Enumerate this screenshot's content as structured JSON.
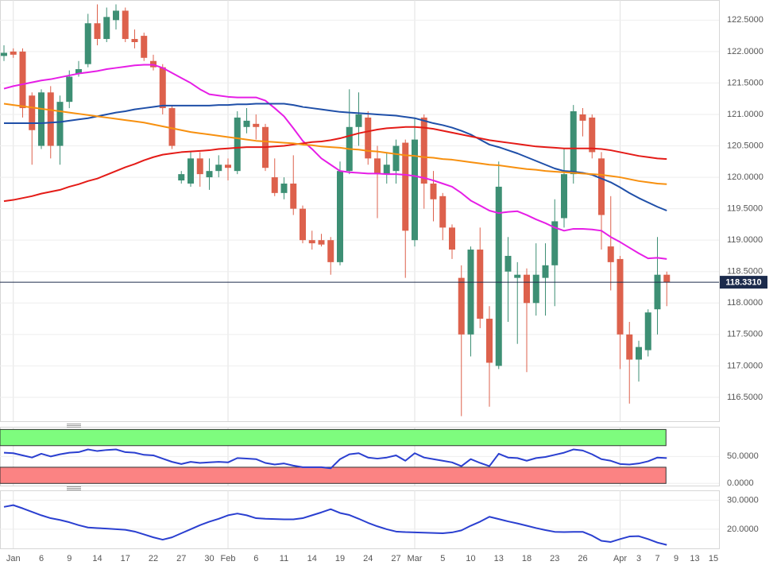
{
  "chart_data": [
    {
      "type": "candlestick",
      "categories": [
        null,
        "Jan",
        null,
        null,
        "6",
        null,
        null,
        "9",
        null,
        null,
        "14",
        null,
        null,
        "17",
        null,
        null,
        "22",
        null,
        null,
        "27",
        null,
        null,
        "30",
        null,
        "Feb",
        null,
        null,
        "6",
        null,
        null,
        "11",
        null,
        null,
        "14",
        null,
        null,
        "19",
        null,
        null,
        "24",
        null,
        null,
        "27",
        null,
        "Mar",
        null,
        null,
        "5",
        null,
        null,
        "10",
        null,
        null,
        "13",
        null,
        null,
        "18",
        null,
        null,
        "23",
        null,
        null,
        "26",
        null,
        null,
        null,
        "Apr",
        null,
        "3",
        null,
        "7",
        null,
        "9",
        null,
        "13",
        null,
        "15"
      ],
      "open": [
        121.93,
        122.0,
        122.0,
        121.3,
        120.5,
        121.35,
        120.5,
        121.2,
        121.65,
        121.8,
        122.45,
        122.2,
        122.5,
        122.65,
        122.2,
        122.25,
        121.85,
        121.75,
        121.1,
        119.95,
        119.9,
        120.3,
        120.0,
        120.1,
        120.2,
        120.1,
        120.8,
        120.85,
        120.8,
        120.0,
        119.75,
        119.9,
        119.5,
        119.0,
        119.0,
        119.0,
        118.65,
        120.1,
        120.8,
        120.95,
        120.3,
        120.05,
        120.1,
        120.55,
        119.0,
        120.95,
        119.9,
        119.7,
        119.2,
        118.4,
        117.5,
        118.85,
        117.75,
        117.0,
        118.5,
        118.4,
        118.45,
        118.0,
        118.4,
        118.6,
        119.35,
        120.05,
        121.0,
        120.95,
        120.3,
        118.9,
        118.7,
        117.5,
        117.1,
        117.25,
        117.9,
        118.45,
        null,
        null,
        null,
        null,
        null
      ],
      "high": [
        122.1,
        122.05,
        122.05,
        121.35,
        121.4,
        121.45,
        121.3,
        121.7,
        121.85,
        122.6,
        122.75,
        122.7,
        122.75,
        122.7,
        122.35,
        122.3,
        121.95,
        121.8,
        121.15,
        120.1,
        120.4,
        120.4,
        120.3,
        120.35,
        120.3,
        121.05,
        121.1,
        121.0,
        120.85,
        120.3,
        120.0,
        120.35,
        119.55,
        119.15,
        119.1,
        119.05,
        120.25,
        121.4,
        121.35,
        121.05,
        120.5,
        120.4,
        120.6,
        120.6,
        120.95,
        121.0,
        120.1,
        119.75,
        119.25,
        118.6,
        118.9,
        119.2,
        117.95,
        120.25,
        119.05,
        118.65,
        118.55,
        118.95,
        118.95,
        119.65,
        120.45,
        121.15,
        121.1,
        121.0,
        120.4,
        119.7,
        118.75,
        117.7,
        117.4,
        117.9,
        119.05,
        118.5,
        null,
        null,
        null,
        null,
        null
      ],
      "low": [
        121.85,
        121.9,
        120.95,
        120.2,
        120.45,
        120.3,
        120.2,
        121.1,
        121.6,
        121.75,
        122.1,
        122.15,
        122.35,
        122.15,
        122.05,
        121.85,
        121.7,
        121.0,
        120.45,
        119.9,
        119.85,
        119.85,
        119.8,
        120.0,
        119.95,
        120.05,
        120.7,
        120.6,
        120.1,
        119.7,
        119.65,
        119.4,
        118.95,
        118.85,
        118.9,
        118.45,
        118.6,
        120.05,
        120.5,
        120.2,
        119.35,
        119.9,
        119.9,
        118.4,
        118.9,
        119.5,
        119.3,
        119.0,
        118.7,
        116.2,
        117.15,
        117.6,
        116.35,
        116.95,
        117.7,
        117.35,
        116.9,
        117.8,
        117.8,
        117.95,
        119.2,
        119.9,
        120.65,
        120.3,
        118.85,
        118.2,
        116.95,
        116.4,
        116.75,
        117.15,
        117.5,
        117.95,
        null,
        null,
        null,
        null,
        null
      ],
      "close": [
        121.98,
        121.95,
        121.1,
        120.75,
        121.35,
        120.5,
        121.2,
        121.6,
        121.72,
        122.45,
        122.2,
        122.55,
        122.65,
        122.2,
        122.15,
        121.9,
        121.75,
        121.1,
        120.5,
        120.05,
        120.3,
        120.05,
        120.1,
        120.2,
        120.15,
        120.95,
        120.9,
        120.8,
        120.15,
        119.75,
        119.9,
        119.5,
        119.0,
        118.95,
        118.93,
        118.65,
        120.1,
        120.8,
        121.0,
        120.3,
        120.05,
        120.2,
        120.5,
        119.15,
        120.6,
        119.9,
        119.65,
        119.2,
        118.85,
        117.5,
        118.85,
        117.75,
        117.05,
        119.85,
        118.75,
        118.45,
        118.0,
        118.45,
        118.6,
        119.3,
        120.05,
        121.05,
        120.9,
        120.4,
        119.4,
        118.65,
        117.5,
        117.1,
        117.3,
        117.85,
        118.45,
        118.331,
        null,
        null,
        null,
        null,
        null
      ],
      "up_color": "#3d8f74",
      "down_color": "#dd614c",
      "lines": [
        {
          "color": "#e61ee6",
          "values": [
            121.41,
            121.45,
            121.48,
            121.51,
            121.54,
            121.56,
            121.59,
            121.62,
            121.65,
            121.67,
            121.69,
            121.72,
            121.74,
            121.76,
            121.78,
            121.79,
            121.79,
            121.74,
            121.66,
            121.58,
            121.5,
            121.4,
            121.32,
            121.3,
            121.28,
            121.27,
            121.27,
            121.27,
            121.22,
            121.1,
            120.97,
            120.78,
            120.58,
            120.45,
            120.3,
            120.2,
            120.1,
            120.08,
            120.07,
            120.06,
            120.06,
            120.05,
            120.05,
            120.04,
            120.02,
            119.99,
            119.95,
            119.9,
            119.85,
            119.75,
            119.63,
            119.55,
            119.47,
            119.43,
            119.45,
            119.46,
            119.4,
            119.33,
            119.27,
            119.2,
            119.15,
            119.18,
            119.18,
            119.17,
            119.15,
            119.05,
            118.97,
            118.88,
            118.79,
            118.71,
            118.72,
            118.7,
            null,
            null,
            null,
            null,
            null
          ]
        },
        {
          "color": "#1f4fa8",
          "values": [
            120.86,
            120.86,
            120.86,
            120.86,
            120.86,
            120.87,
            120.88,
            120.9,
            120.92,
            120.94,
            120.97,
            121.0,
            121.03,
            121.05,
            121.08,
            121.1,
            121.12,
            121.14,
            121.14,
            121.14,
            121.14,
            121.14,
            121.14,
            121.15,
            121.15,
            121.16,
            121.16,
            121.17,
            121.17,
            121.17,
            121.17,
            121.15,
            121.12,
            121.1,
            121.08,
            121.06,
            121.04,
            121.03,
            121.02,
            121.01,
            121.0,
            120.99,
            120.98,
            120.96,
            120.94,
            120.9,
            120.86,
            120.83,
            120.79,
            120.74,
            120.68,
            120.6,
            120.52,
            120.48,
            120.43,
            120.38,
            120.32,
            120.26,
            120.2,
            120.14,
            120.1,
            120.09,
            120.07,
            120.04,
            119.98,
            119.92,
            119.84,
            119.75,
            119.67,
            119.6,
            119.53,
            119.47,
            null,
            null,
            null,
            null,
            null
          ]
        },
        {
          "color": "#e41b17",
          "values": [
            119.62,
            119.64,
            119.67,
            119.7,
            119.74,
            119.77,
            119.8,
            119.85,
            119.89,
            119.94,
            119.98,
            120.04,
            120.1,
            120.16,
            120.21,
            120.27,
            120.32,
            120.36,
            120.38,
            120.4,
            120.41,
            120.42,
            120.43,
            120.45,
            120.46,
            120.47,
            120.48,
            120.48,
            120.48,
            120.49,
            120.5,
            120.52,
            120.54,
            120.56,
            120.57,
            120.59,
            120.62,
            120.66,
            120.7,
            120.73,
            120.76,
            120.78,
            120.79,
            120.8,
            120.8,
            120.79,
            120.77,
            120.74,
            120.71,
            120.68,
            120.65,
            120.62,
            120.59,
            120.57,
            120.55,
            120.53,
            120.51,
            120.49,
            120.48,
            120.47,
            120.46,
            120.46,
            120.46,
            120.46,
            120.45,
            120.43,
            120.4,
            120.37,
            120.34,
            120.32,
            120.3,
            120.29,
            null,
            null,
            null,
            null,
            null
          ]
        },
        {
          "color": "#f7900f",
          "values": [
            121.17,
            121.15,
            121.13,
            121.11,
            121.09,
            121.07,
            121.05,
            121.03,
            121.01,
            120.99,
            120.97,
            120.95,
            120.93,
            120.91,
            120.89,
            120.87,
            120.84,
            120.81,
            120.78,
            120.75,
            120.72,
            120.7,
            120.68,
            120.66,
            120.64,
            120.62,
            120.6,
            120.58,
            120.57,
            120.56,
            120.55,
            120.54,
            120.52,
            120.51,
            120.49,
            120.48,
            120.47,
            120.45,
            120.44,
            120.42,
            120.41,
            120.39,
            120.37,
            120.35,
            120.34,
            120.32,
            120.31,
            120.29,
            120.28,
            120.26,
            120.24,
            120.22,
            120.2,
            120.19,
            120.17,
            120.15,
            120.13,
            120.12,
            120.1,
            120.09,
            120.08,
            120.07,
            120.06,
            120.05,
            120.04,
            120.02,
            120.0,
            119.97,
            119.94,
            119.92,
            119.9,
            119.89,
            null,
            null,
            null,
            null,
            null
          ]
        }
      ],
      "ylim": [
        116.12,
        122.82
      ],
      "yticks": [
        {
          "value": 116.5,
          "label": "116.5000"
        },
        {
          "value": 117.0,
          "label": "117.0000"
        },
        {
          "value": 117.5,
          "label": "117.5000"
        },
        {
          "value": 118.0,
          "label": "118.0000"
        },
        {
          "value": 118.5,
          "label": "118.5000"
        },
        {
          "value": 119.0,
          "label": "119.0000"
        },
        {
          "value": 119.5,
          "label": "119.5000"
        },
        {
          "value": 120.0,
          "label": "120.0000"
        },
        {
          "value": 120.5,
          "label": "120.5000"
        },
        {
          "value": 121.0,
          "label": "121.0000"
        },
        {
          "value": 121.5,
          "label": "121.5000"
        },
        {
          "value": 122.0,
          "label": "122.0000"
        },
        {
          "value": 122.5,
          "label": "122.5000"
        }
      ],
      "last_price": {
        "value": 118.331,
        "label": "118.3310",
        "color": "#1c2b4c"
      },
      "grid": true
    },
    {
      "type": "line",
      "color": "#2a3fd0",
      "values": [
        57,
        56,
        52,
        48,
        55,
        50,
        54,
        57,
        58,
        63,
        60,
        62,
        63,
        58,
        57,
        53,
        52,
        46,
        40,
        36,
        40,
        38,
        39,
        40,
        39,
        47,
        46,
        45,
        38,
        35,
        37,
        33,
        30,
        30,
        30,
        28,
        45,
        54,
        56,
        48,
        46,
        48,
        52,
        42,
        56,
        48,
        45,
        42,
        39,
        32,
        45,
        38,
        32,
        55,
        48,
        47,
        42,
        47,
        49,
        53,
        57,
        63,
        61,
        54,
        45,
        42,
        36,
        35,
        37,
        41,
        48,
        47,
        null,
        null,
        null,
        null,
        null
      ],
      "bands": [
        {
          "range": [
            70,
            100
          ],
          "color": "#7efc7e"
        },
        {
          "range": [
            0,
            30
          ],
          "color": "#fb8383"
        }
      ],
      "ylim": [
        -4,
        105
      ],
      "yticks": [
        {
          "value": 50,
          "label": "50.0000"
        },
        {
          "value": 0,
          "label": "0.0000"
        }
      ]
    },
    {
      "type": "line",
      "color": "#2a3fd0",
      "values": [
        27.7,
        28.3,
        27.2,
        26.0,
        24.8,
        23.8,
        23.2,
        22.4,
        21.4,
        20.6,
        20.4,
        20.2,
        20.0,
        19.8,
        19.2,
        18.2,
        17.2,
        16.4,
        17.2,
        18.6,
        20.0,
        21.4,
        22.6,
        23.6,
        24.8,
        25.4,
        24.8,
        23.8,
        23.6,
        23.5,
        23.4,
        23.4,
        23.8,
        24.8,
        25.8,
        26.9,
        25.6,
        24.9,
        23.6,
        22.2,
        21.0,
        20.0,
        19.2,
        19.0,
        18.9,
        18.8,
        18.7,
        18.6,
        18.9,
        19.6,
        21.2,
        22.6,
        24.3,
        23.5,
        22.7,
        22.0,
        21.2,
        20.4,
        19.7,
        19.1,
        19.0,
        19.1,
        19.1,
        17.8,
        16.0,
        15.6,
        16.6,
        17.5,
        17.6,
        16.6,
        15.4,
        14.6,
        null,
        null,
        null,
        null,
        null
      ],
      "ylim": [
        13.4,
        33.4
      ],
      "yticks": [
        {
          "value": 30,
          "label": "30.0000"
        },
        {
          "value": 20,
          "label": "20.0000"
        }
      ]
    }
  ]
}
